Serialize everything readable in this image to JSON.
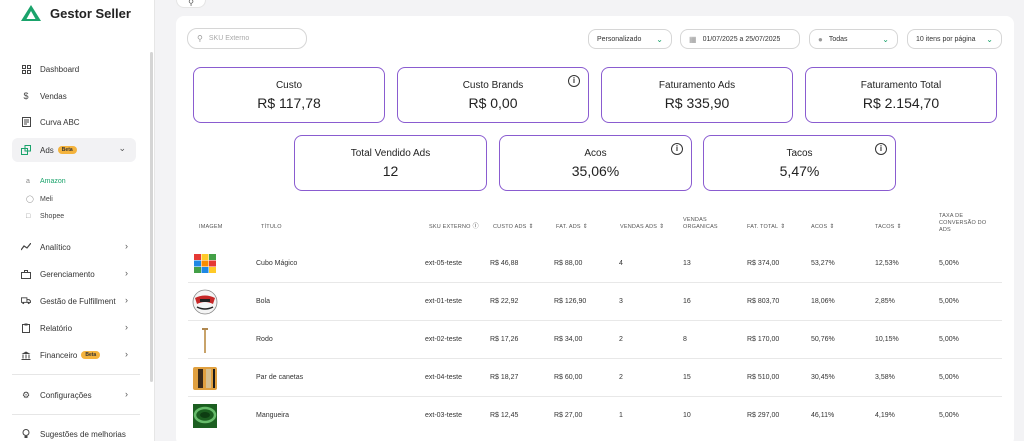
{
  "brand": {
    "name": "Gestor Seller"
  },
  "sidebar": {
    "items": [
      {
        "label": "Dashboard",
        "icon": "dashboard-icon"
      },
      {
        "label": "Vendas",
        "icon": "dollar-icon"
      },
      {
        "label": "Curva ABC",
        "icon": "report-icon"
      },
      {
        "label": "Ads",
        "icon": "ads-icon",
        "badge": "Beta"
      },
      {
        "label": "Analítico",
        "icon": "analytics-icon"
      },
      {
        "label": "Gerenciamento",
        "icon": "briefcase-icon"
      },
      {
        "label": "Gestão de Fulfillment",
        "icon": "truck-icon"
      },
      {
        "label": "Relatório",
        "icon": "clipboard-icon"
      },
      {
        "label": "Financeiro",
        "icon": "bank-icon",
        "badge": "Beta"
      },
      {
        "label": "Configurações",
        "icon": "gear-icon"
      },
      {
        "label": "Sugestões de melhorias",
        "icon": "bulb-icon"
      }
    ],
    "ads_sub": [
      {
        "label": "Amazon"
      },
      {
        "label": "Meli"
      },
      {
        "label": "Shopee"
      }
    ]
  },
  "search": {
    "placeholder": "SKU Externo"
  },
  "filters": {
    "period": "Personalizado",
    "date_range": "01/07/2025 a 25/07/2025",
    "account": "Todas",
    "page_size": "10 itens por página"
  },
  "cards": {
    "custo": {
      "label": "Custo",
      "value": "R$ 117,78"
    },
    "custo_brands": {
      "label": "Custo Brands",
      "value": "R$ 0,00"
    },
    "faturamento_ads": {
      "label": "Faturamento Ads",
      "value": "R$ 335,90"
    },
    "faturamento_total": {
      "label": "Faturamento Total",
      "value": "R$ 2.154,70"
    },
    "total_vendido_ads": {
      "label": "Total Vendido Ads",
      "value": "12"
    },
    "acos": {
      "label": "Acos",
      "value": "35,06%"
    },
    "tacos": {
      "label": "Tacos",
      "value": "5,47%"
    }
  },
  "table": {
    "headers": {
      "imagem": "IMAGEM",
      "titulo": "TÍTULO",
      "sku": "SKU EXTERNO",
      "custo_ads": "CUSTO ADS",
      "fat_ads": "FAT. ADS",
      "vendas_ads": "VENDAS ADS",
      "vendas_org_1": "VENDAS",
      "vendas_org_2": "ORGANICAS",
      "fat_total": "FAT. TOTAL",
      "acos": "ACOS",
      "tacos": "TACOS",
      "taxa_1": "TAXA DE",
      "taxa_2": "CONVERSÃO DO",
      "taxa_3": "ADS"
    },
    "rows": [
      {
        "titulo": "Cubo Mágico",
        "sku": "ext-05-teste",
        "custo_ads": "R$ 46,88",
        "fat_ads": "R$ 88,00",
        "vendas_ads": "4",
        "vendas_org": "13",
        "fat_total": "R$ 374,00",
        "acos": "53,27%",
        "tacos": "12,53%",
        "taxa": "5,00%"
      },
      {
        "titulo": "Bola",
        "sku": "ext-01-teste",
        "custo_ads": "R$ 22,92",
        "fat_ads": "R$ 126,90",
        "vendas_ads": "3",
        "vendas_org": "16",
        "fat_total": "R$ 803,70",
        "acos": "18,06%",
        "tacos": "2,85%",
        "taxa": "5,00%"
      },
      {
        "titulo": "Rodo",
        "sku": "ext-02-teste",
        "custo_ads": "R$ 17,26",
        "fat_ads": "R$ 34,00",
        "vendas_ads": "2",
        "vendas_org": "8",
        "fat_total": "R$ 170,00",
        "acos": "50,76%",
        "tacos": "10,15%",
        "taxa": "5,00%"
      },
      {
        "titulo": "Par de canetas",
        "sku": "ext-04-teste",
        "custo_ads": "R$ 18,27",
        "fat_ads": "R$ 60,00",
        "vendas_ads": "2",
        "vendas_org": "15",
        "fat_total": "R$ 510,00",
        "acos": "30,45%",
        "tacos": "3,58%",
        "taxa": "5,00%"
      },
      {
        "titulo": "Mangueira",
        "sku": "ext-03-teste",
        "custo_ads": "R$ 12,45",
        "fat_ads": "R$ 27,00",
        "vendas_ads": "1",
        "vendas_org": "10",
        "fat_total": "R$ 297,00",
        "acos": "46,11%",
        "tacos": "4,19%",
        "taxa": "5,00%"
      }
    ]
  },
  "colors": {
    "accent": "#1aa36b",
    "card_border": "#8a5cd0",
    "badge": "#f4b33d"
  }
}
